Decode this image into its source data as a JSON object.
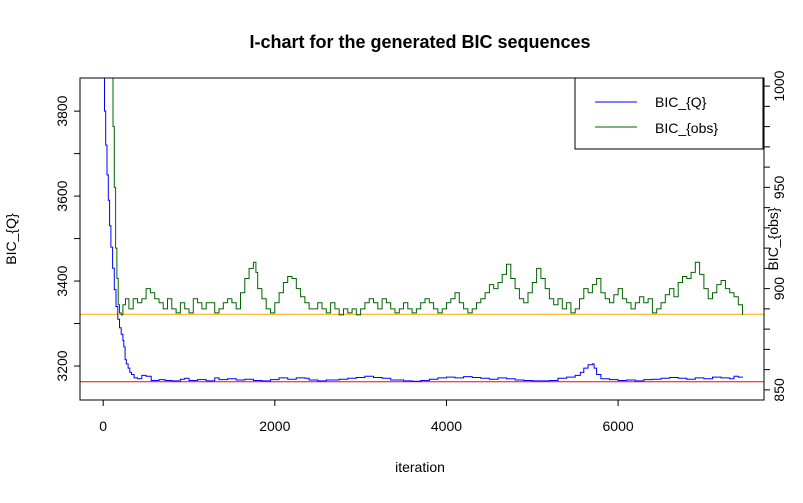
{
  "chart_data": {
    "type": "line",
    "title": "I-chart for the generated BIC sequences",
    "xlabel": "iteration",
    "ylabel_left": "BIC_{Q}",
    "ylabel_right": "BIC_{obs}",
    "xlim": [
      -270,
      7700
    ],
    "ylim_left": [
      3120,
      3878
    ],
    "ylim_right": [
      845,
      1004
    ],
    "x_ticks": [
      0,
      2000,
      4000,
      6000
    ],
    "y_ticks_left": [
      3200,
      3400,
      3600,
      3800
    ],
    "y_ticks_right": [
      850,
      900,
      950,
      1000
    ],
    "grid": false,
    "legend": {
      "position": "top-right",
      "entries": [
        {
          "label": "BIC_{Q}",
          "color": "#0000ff"
        },
        {
          "label": "BIC_{obs}",
          "color": "#006400"
        }
      ]
    },
    "reference_lines": [
      {
        "axis": "left",
        "value": 3163,
        "color": "#ff0000"
      },
      {
        "axis": "left",
        "value": 3322,
        "color": "#ffa500"
      }
    ],
    "series": [
      {
        "name": "BIC_{Q}",
        "axis": "left",
        "color": "#0000ff",
        "step": true,
        "points": [
          [
            0,
            3880
          ],
          [
            15,
            3800
          ],
          [
            30,
            3720
          ],
          [
            45,
            3650
          ],
          [
            60,
            3590
          ],
          [
            75,
            3530
          ],
          [
            90,
            3480
          ],
          [
            110,
            3430
          ],
          [
            130,
            3380
          ],
          [
            150,
            3340
          ],
          [
            170,
            3310
          ],
          [
            190,
            3290
          ],
          [
            210,
            3275
          ],
          [
            230,
            3260
          ],
          [
            240,
            3245
          ],
          [
            255,
            3215
          ],
          [
            270,
            3205
          ],
          [
            290,
            3195
          ],
          [
            310,
            3185
          ],
          [
            330,
            3180
          ],
          [
            360,
            3172
          ],
          [
            400,
            3170
          ],
          [
            450,
            3178
          ],
          [
            500,
            3176
          ],
          [
            560,
            3166
          ],
          [
            650,
            3168
          ],
          [
            720,
            3166
          ],
          [
            800,
            3165
          ],
          [
            900,
            3169
          ],
          [
            950,
            3171
          ],
          [
            1000,
            3166
          ],
          [
            1100,
            3168
          ],
          [
            1200,
            3165
          ],
          [
            1300,
            3172
          ],
          [
            1350,
            3168
          ],
          [
            1450,
            3170
          ],
          [
            1550,
            3167
          ],
          [
            1650,
            3169
          ],
          [
            1750,
            3166
          ],
          [
            1850,
            3165
          ],
          [
            1950,
            3168
          ],
          [
            2050,
            3172
          ],
          [
            2150,
            3169
          ],
          [
            2250,
            3172
          ],
          [
            2350,
            3171
          ],
          [
            2400,
            3167
          ],
          [
            2500,
            3165
          ],
          [
            2600,
            3167
          ],
          [
            2750,
            3169
          ],
          [
            2850,
            3171
          ],
          [
            2950,
            3173
          ],
          [
            3050,
            3176
          ],
          [
            3150,
            3173
          ],
          [
            3250,
            3171
          ],
          [
            3350,
            3167
          ],
          [
            3500,
            3165
          ],
          [
            3600,
            3164
          ],
          [
            3700,
            3166
          ],
          [
            3800,
            3169
          ],
          [
            3900,
            3172
          ],
          [
            4000,
            3174
          ],
          [
            4100,
            3172
          ],
          [
            4200,
            3175
          ],
          [
            4300,
            3173
          ],
          [
            4400,
            3171
          ],
          [
            4500,
            3169
          ],
          [
            4600,
            3172
          ],
          [
            4700,
            3170
          ],
          [
            4800,
            3167
          ],
          [
            4900,
            3166
          ],
          [
            5000,
            3165
          ],
          [
            5200,
            3166
          ],
          [
            5300,
            3171
          ],
          [
            5400,
            3174
          ],
          [
            5500,
            3178
          ],
          [
            5560,
            3185
          ],
          [
            5600,
            3195
          ],
          [
            5650,
            3203
          ],
          [
            5700,
            3205
          ],
          [
            5720,
            3195
          ],
          [
            5750,
            3180
          ],
          [
            5800,
            3170
          ],
          [
            5900,
            3168
          ],
          [
            6000,
            3166
          ],
          [
            6100,
            3167
          ],
          [
            6200,
            3165
          ],
          [
            6300,
            3168
          ],
          [
            6400,
            3169
          ],
          [
            6500,
            3171
          ],
          [
            6600,
            3173
          ],
          [
            6700,
            3171
          ],
          [
            6800,
            3169
          ],
          [
            6900,
            3172
          ],
          [
            7000,
            3170
          ],
          [
            7100,
            3174
          ],
          [
            7200,
            3172
          ],
          [
            7300,
            3170
          ],
          [
            7350,
            3176
          ],
          [
            7400,
            3174
          ],
          [
            7450,
            3173
          ]
        ]
      },
      {
        "name": "BIC_{obs}",
        "axis": "right",
        "color": "#006400",
        "step": true,
        "points": [
          [
            100,
            1010
          ],
          [
            115,
            980
          ],
          [
            130,
            950
          ],
          [
            145,
            920
          ],
          [
            160,
            905
          ],
          [
            175,
            892
          ],
          [
            190,
            888
          ],
          [
            210,
            887
          ],
          [
            230,
            892
          ],
          [
            260,
            895
          ],
          [
            300,
            890
          ],
          [
            350,
            895
          ],
          [
            400,
            893
          ],
          [
            450,
            895
          ],
          [
            500,
            900
          ],
          [
            550,
            898
          ],
          [
            600,
            895
          ],
          [
            650,
            893
          ],
          [
            700,
            890
          ],
          [
            750,
            895
          ],
          [
            800,
            890
          ],
          [
            850,
            888
          ],
          [
            900,
            893
          ],
          [
            950,
            890
          ],
          [
            1000,
            888
          ],
          [
            1050,
            895
          ],
          [
            1100,
            893
          ],
          [
            1150,
            890
          ],
          [
            1200,
            893
          ],
          [
            1300,
            888
          ],
          [
            1350,
            890
          ],
          [
            1400,
            893
          ],
          [
            1450,
            895
          ],
          [
            1500,
            893
          ],
          [
            1550,
            890
          ],
          [
            1600,
            898
          ],
          [
            1650,
            905
          ],
          [
            1700,
            910
          ],
          [
            1750,
            913
          ],
          [
            1780,
            908
          ],
          [
            1800,
            900
          ],
          [
            1850,
            895
          ],
          [
            1900,
            890
          ],
          [
            1950,
            888
          ],
          [
            2000,
            893
          ],
          [
            2050,
            898
          ],
          [
            2100,
            903
          ],
          [
            2150,
            906
          ],
          [
            2200,
            905
          ],
          [
            2250,
            900
          ],
          [
            2300,
            896
          ],
          [
            2350,
            893
          ],
          [
            2400,
            890
          ],
          [
            2450,
            890
          ],
          [
            2500,
            893
          ],
          [
            2550,
            890
          ],
          [
            2600,
            888
          ],
          [
            2650,
            893
          ],
          [
            2700,
            890
          ],
          [
            2750,
            887
          ],
          [
            2800,
            890
          ],
          [
            2850,
            888
          ],
          [
            2900,
            890
          ],
          [
            2950,
            887
          ],
          [
            3000,
            890
          ],
          [
            3050,
            893
          ],
          [
            3100,
            895
          ],
          [
            3150,
            893
          ],
          [
            3200,
            890
          ],
          [
            3250,
            895
          ],
          [
            3300,
            893
          ],
          [
            3350,
            890
          ],
          [
            3400,
            888
          ],
          [
            3450,
            890
          ],
          [
            3500,
            893
          ],
          [
            3550,
            890
          ],
          [
            3600,
            888
          ],
          [
            3650,
            890
          ],
          [
            3700,
            893
          ],
          [
            3750,
            895
          ],
          [
            3800,
            893
          ],
          [
            3850,
            890
          ],
          [
            3900,
            888
          ],
          [
            3950,
            890
          ],
          [
            4000,
            893
          ],
          [
            4050,
            895
          ],
          [
            4100,
            898
          ],
          [
            4150,
            893
          ],
          [
            4200,
            890
          ],
          [
            4250,
            888
          ],
          [
            4300,
            890
          ],
          [
            4350,
            893
          ],
          [
            4400,
            895
          ],
          [
            4450,
            898
          ],
          [
            4500,
            902
          ],
          [
            4550,
            900
          ],
          [
            4600,
            903
          ],
          [
            4650,
            907
          ],
          [
            4700,
            912
          ],
          [
            4750,
            905
          ],
          [
            4800,
            900
          ],
          [
            4850,
            895
          ],
          [
            4900,
            893
          ],
          [
            4950,
            898
          ],
          [
            5000,
            903
          ],
          [
            5050,
            910
          ],
          [
            5100,
            905
          ],
          [
            5150,
            900
          ],
          [
            5200,
            895
          ],
          [
            5250,
            892
          ],
          [
            5300,
            895
          ],
          [
            5350,
            890
          ],
          [
            5400,
            893
          ],
          [
            5450,
            888
          ],
          [
            5500,
            890
          ],
          [
            5550,
            895
          ],
          [
            5600,
            900
          ],
          [
            5650,
            898
          ],
          [
            5700,
            902
          ],
          [
            5750,
            905
          ],
          [
            5800,
            898
          ],
          [
            5850,
            895
          ],
          [
            5900,
            893
          ],
          [
            5950,
            897
          ],
          [
            6000,
            900
          ],
          [
            6050,
            895
          ],
          [
            6100,
            893
          ],
          [
            6150,
            890
          ],
          [
            6200,
            893
          ],
          [
            6250,
            896
          ],
          [
            6300,
            893
          ],
          [
            6350,
            895
          ],
          [
            6400,
            888
          ],
          [
            6450,
            890
          ],
          [
            6500,
            893
          ],
          [
            6550,
            897
          ],
          [
            6600,
            900
          ],
          [
            6650,
            896
          ],
          [
            6700,
            903
          ],
          [
            6750,
            906
          ],
          [
            6800,
            905
          ],
          [
            6850,
            908
          ],
          [
            6900,
            913
          ],
          [
            6950,
            907
          ],
          [
            7000,
            900
          ],
          [
            7050,
            895
          ],
          [
            7100,
            898
          ],
          [
            7150,
            902
          ],
          [
            7200,
            904
          ],
          [
            7250,
            900
          ],
          [
            7300,
            898
          ],
          [
            7350,
            896
          ],
          [
            7400,
            892
          ],
          [
            7450,
            887
          ]
        ]
      }
    ]
  }
}
